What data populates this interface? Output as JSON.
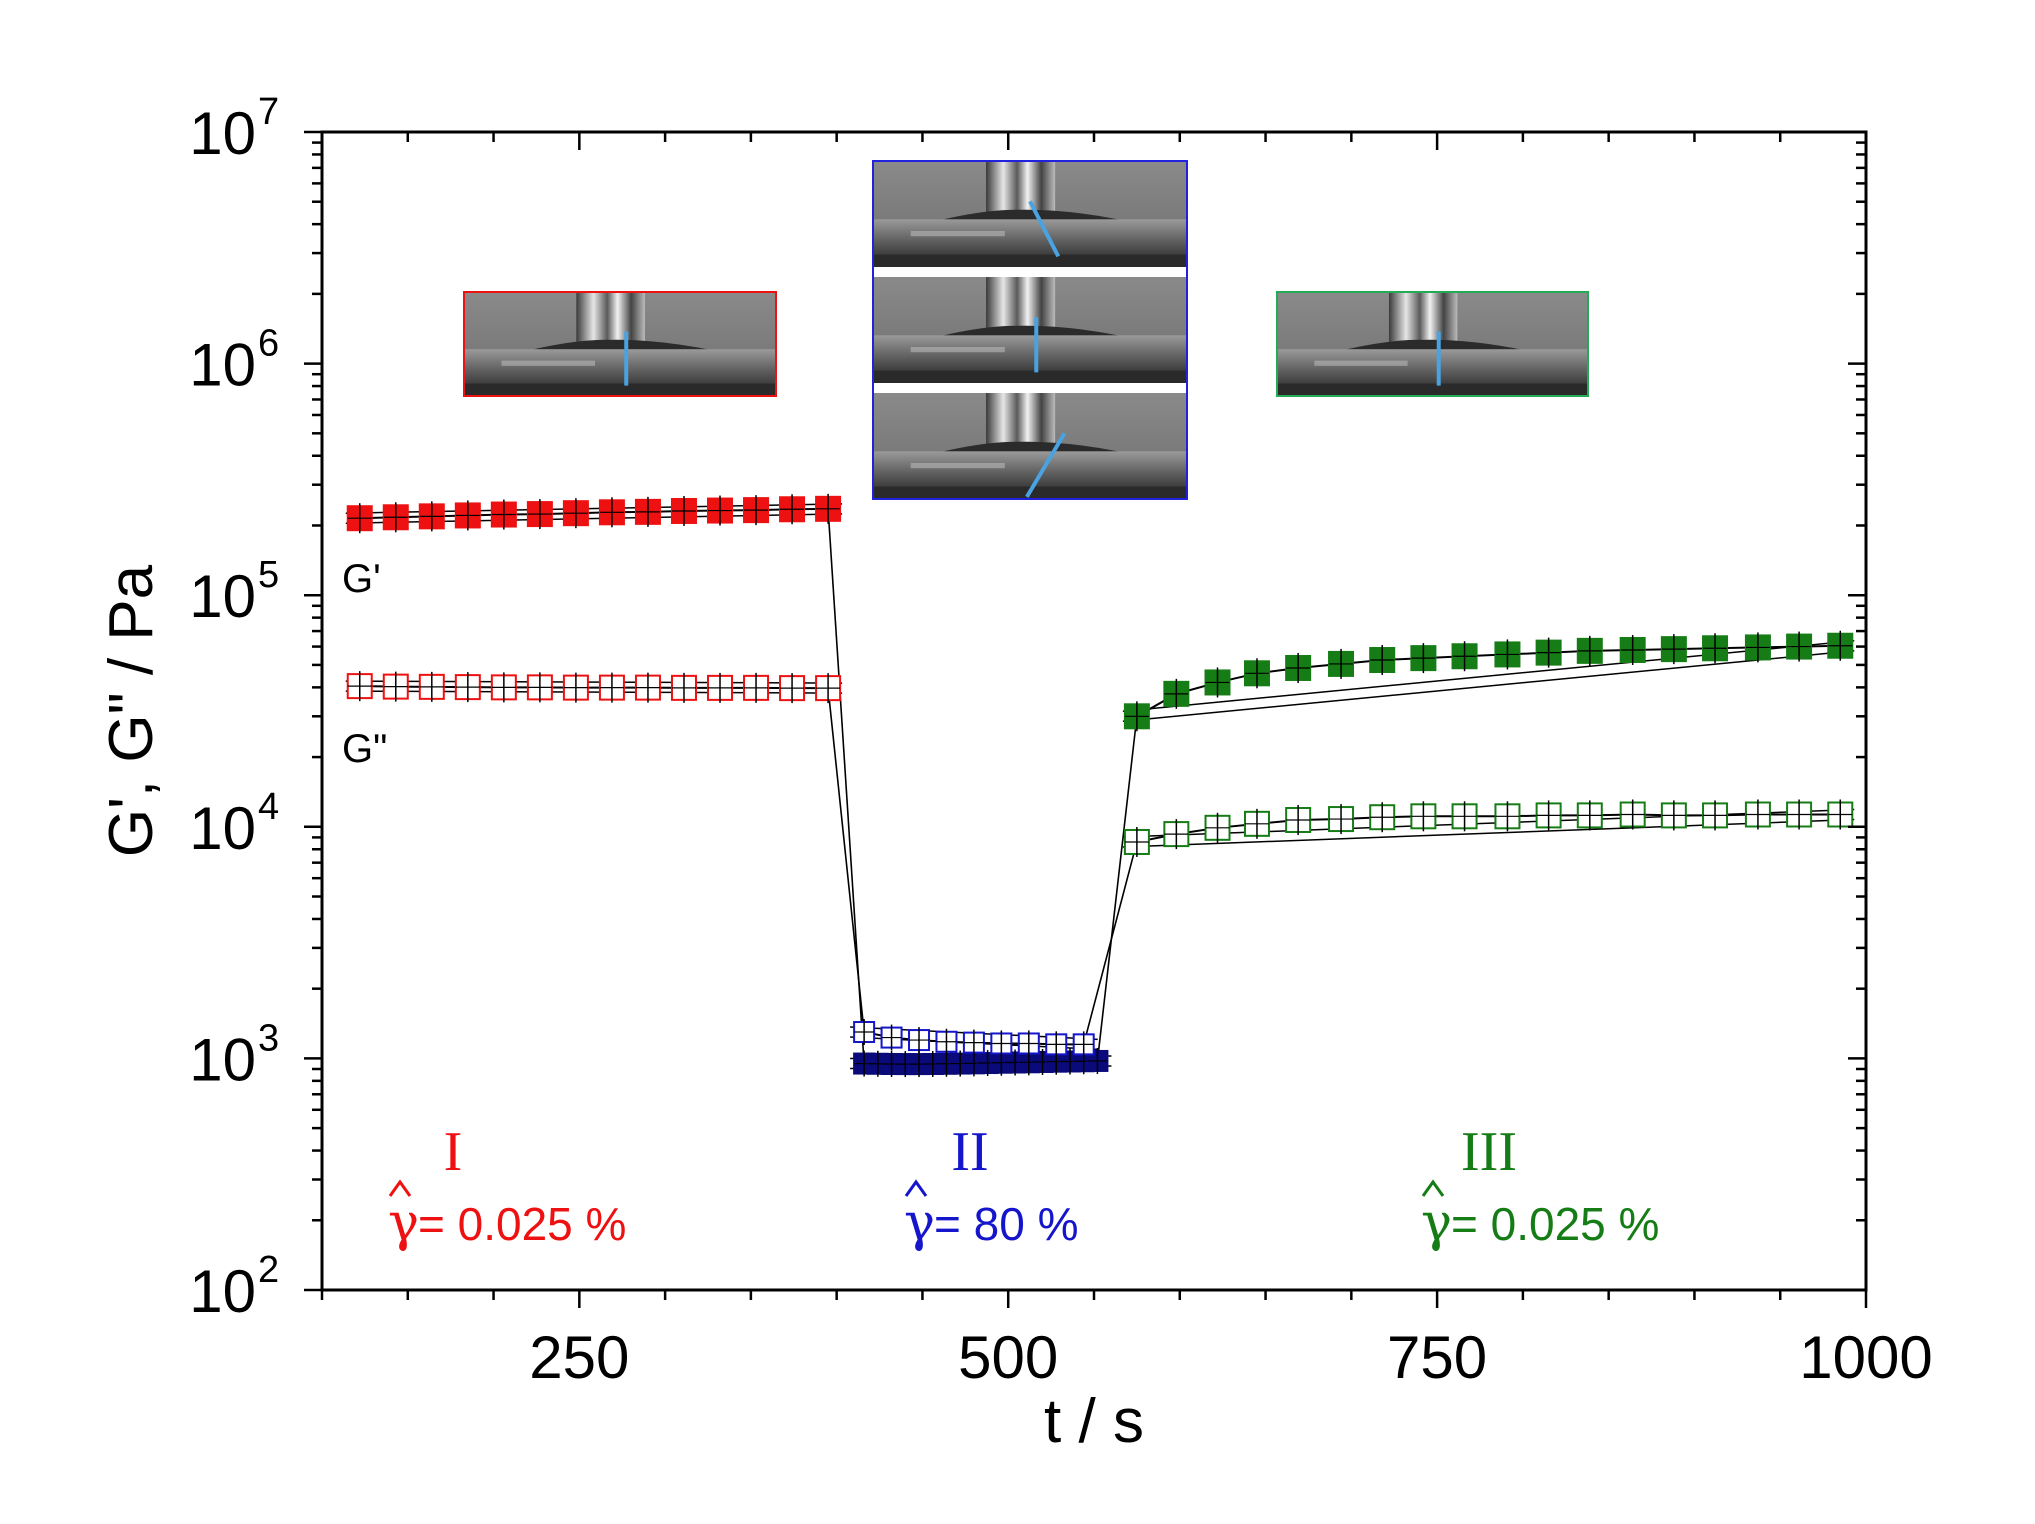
{
  "chart_data": {
    "type": "scatter",
    "xlabel": "t / s",
    "ylabel": "G', G\" / Pa",
    "xlim": [
      100,
      1000
    ],
    "ylim": [
      100,
      10000000
    ],
    "yscale": "log",
    "xticks": [
      250,
      500,
      750,
      1000
    ],
    "yticks": [
      {
        "value": 100,
        "base": "10",
        "exp": "2"
      },
      {
        "value": 1000,
        "base": "10",
        "exp": "3"
      },
      {
        "value": 10000,
        "base": "10",
        "exp": "4"
      },
      {
        "value": 100000,
        "base": "10",
        "exp": "5"
      },
      {
        "value": 1000000,
        "base": "10",
        "exp": "6"
      },
      {
        "value": 10000000,
        "base": "10",
        "exp": "7"
      }
    ],
    "series_labels": {
      "g_prime": "G'",
      "g_double_prime": "G\""
    },
    "regions": [
      {
        "numeral": "I",
        "gamma": "γ",
        "strain": " = 0.025 %",
        "color": "#ee1111"
      },
      {
        "numeral": "II",
        "gamma": "γ",
        "strain": " = 80 %",
        "color": "#1515cc"
      },
      {
        "numeral": "III",
        "gamma": "γ",
        "strain": " = 0.025 %",
        "color": "#167d16"
      }
    ],
    "series": [
      {
        "key": "g_prime_I",
        "region": 0,
        "filled": true,
        "color": "#ee1111",
        "x": [
          122,
          143,
          164,
          185,
          206,
          227,
          248,
          269,
          290,
          311,
          332,
          353,
          374,
          395
        ],
        "y": [
          215000,
          217000,
          219000,
          221000,
          223000,
          224000,
          226000,
          228000,
          229000,
          231000,
          232000,
          233000,
          235000,
          236000
        ]
      },
      {
        "key": "g_double_prime_I",
        "region": 0,
        "filled": false,
        "color": "#ee1111",
        "x": [
          122,
          143,
          164,
          185,
          206,
          227,
          248,
          269,
          290,
          311,
          332,
          353,
          374,
          395
        ],
        "y": [
          40500,
          40300,
          40200,
          40100,
          40000,
          40000,
          39900,
          39900,
          39900,
          39800,
          39800,
          39800,
          39700,
          39700
        ]
      },
      {
        "key": "g_prime_II",
        "region": 1,
        "filled": true,
        "color": "#0a0a7a",
        "x": [
          416,
          424,
          432,
          440,
          448,
          456,
          464,
          472,
          480,
          488,
          496,
          504,
          512,
          520,
          528,
          536,
          544,
          552
        ],
        "y": [
          950,
          948,
          946,
          945,
          945,
          946,
          948,
          950,
          952,
          955,
          958,
          960,
          962,
          965,
          968,
          970,
          972,
          975
        ]
      },
      {
        "key": "g_double_prime_II",
        "region": 1,
        "filled": false,
        "color": "#1515cc",
        "x": [
          416,
          432,
          448,
          464,
          480,
          496,
          512,
          528,
          544
        ],
        "y": [
          1300,
          1230,
          1200,
          1180,
          1170,
          1160,
          1160,
          1150,
          1150
        ]
      },
      {
        "key": "g_prime_III",
        "region": 2,
        "filled": true,
        "color": "#167d16",
        "x": [
          575,
          598,
          622,
          645,
          669,
          694,
          718,
          742,
          766,
          791,
          815,
          839,
          864,
          888,
          912,
          937,
          961,
          985
        ],
        "y": [
          30000,
          37500,
          42000,
          46000,
          48500,
          50500,
          52500,
          53500,
          54500,
          55500,
          56500,
          57500,
          58000,
          58500,
          59000,
          59500,
          60000,
          60500
        ]
      },
      {
        "key": "g_double_prime_III",
        "region": 2,
        "filled": false,
        "color": "#167d16",
        "x": [
          575,
          598,
          622,
          645,
          669,
          694,
          718,
          742,
          766,
          791,
          815,
          839,
          864,
          888,
          912,
          937,
          961,
          985
        ],
        "y": [
          8600,
          9300,
          9900,
          10300,
          10700,
          10800,
          11000,
          11100,
          11100,
          11100,
          11200,
          11200,
          11300,
          11200,
          11200,
          11300,
          11300,
          11300
        ]
      }
    ],
    "transitions": [
      {
        "from_x": 395,
        "from_y": 236000,
        "to_x": 416,
        "to_y": 950
      },
      {
        "from_x": 395,
        "from_y": 39700,
        "to_x": 416,
        "to_y": 1300
      },
      {
        "from_x": 552,
        "from_y": 975,
        "to_x": 575,
        "to_y": 30000
      },
      {
        "from_x": 544,
        "from_y": 1150,
        "to_x": 575,
        "to_y": 8600
      }
    ],
    "insets": [
      {
        "region": 0,
        "frames": [
          "vertical"
        ],
        "border": "#ee1111"
      },
      {
        "region": 1,
        "frames": [
          "tilt-left",
          "vertical",
          "tilt-right"
        ],
        "border": "#2222dd"
      },
      {
        "region": 2,
        "frames": [
          "vertical"
        ],
        "border": "#22aa55"
      }
    ],
    "grid": false,
    "legend": "none"
  }
}
